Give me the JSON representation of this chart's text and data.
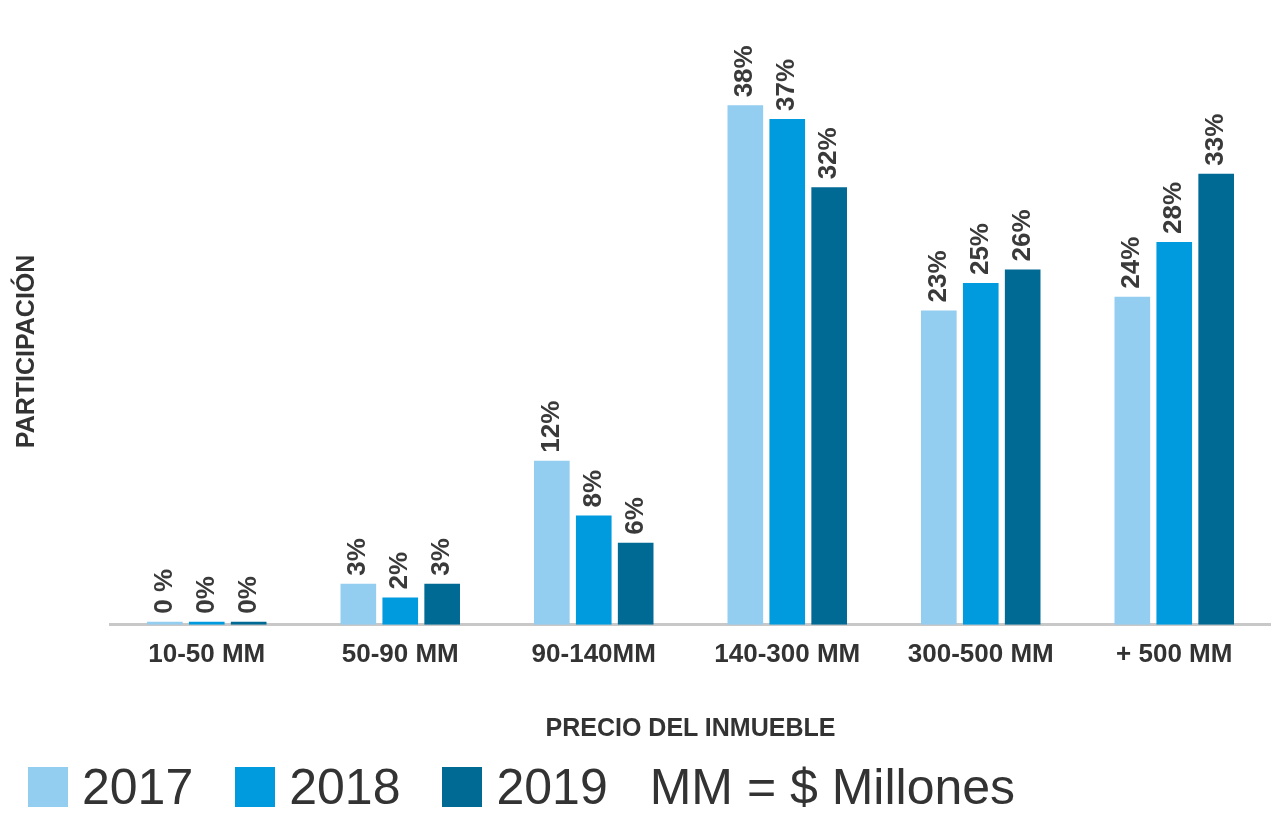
{
  "chart_data": {
    "type": "bar",
    "xlabel": "PRECIO DEL INMUEBLE",
    "ylabel": "PARTICIPACIÓN",
    "categories": [
      "10-50 MM",
      "50-90 MM",
      "90-140MM",
      "140-300 MM",
      "300-500 MM",
      "+ 500 MM"
    ],
    "series": [
      {
        "name": "2017",
        "color": "#93cdf0",
        "values": [
          0,
          3,
          12,
          38,
          23,
          24
        ],
        "value_labels": [
          "0 %",
          "3%",
          "12%",
          "38%",
          "23%",
          "24%"
        ]
      },
      {
        "name": "2018",
        "color": "#009ade",
        "values": [
          0,
          2,
          8,
          37,
          25,
          28
        ],
        "value_labels": [
          "0%",
          "2%",
          "8%",
          "37%",
          "25%",
          "28%"
        ]
      },
      {
        "name": "2019",
        "color": "#006994",
        "values": [
          0,
          3,
          6,
          32,
          26,
          33
        ],
        "value_labels": [
          "0%",
          "3%",
          "6%",
          "32%",
          "26%",
          "33%"
        ]
      }
    ],
    "legend": "bottom",
    "grid": false,
    "annotations": [
      "MM = $ Millones"
    ]
  }
}
